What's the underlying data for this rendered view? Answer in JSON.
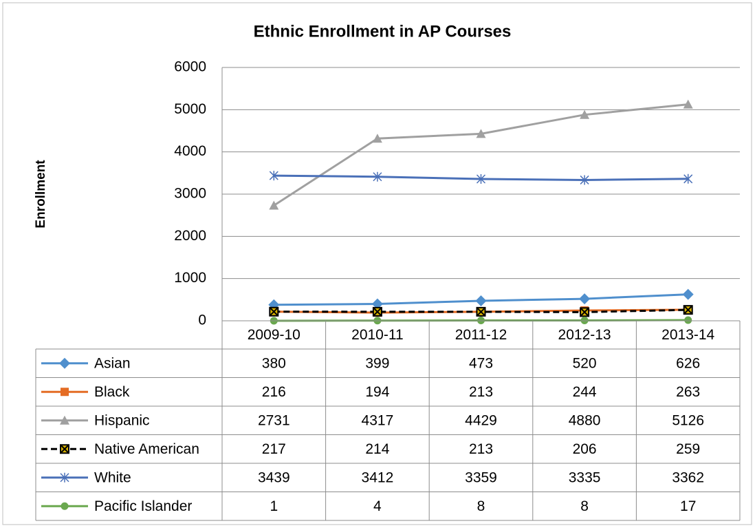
{
  "chart_data": {
    "type": "line",
    "title": "Ethnic Enrollment in AP Courses",
    "y_label": "Enrollment",
    "categories": [
      "2009-10",
      "2010-11",
      "2011-12",
      "2012-13",
      "2013-14"
    ],
    "series": [
      {
        "name": "Asian",
        "color": "#4f8fcd",
        "marker": "diamond",
        "values": [
          380,
          399,
          473,
          520,
          626
        ]
      },
      {
        "name": "Black",
        "color": "#e46c24",
        "marker": "square",
        "values": [
          216,
          194,
          213,
          244,
          263
        ]
      },
      {
        "name": "Hispanic",
        "color": "#a0a0a0",
        "marker": "triangle",
        "values": [
          2731,
          4317,
          4429,
          4880,
          5126
        ]
      },
      {
        "name": "Native American",
        "color": "#000000",
        "marker": "xsquare",
        "dashed": true,
        "values": [
          217,
          214,
          213,
          206,
          259
        ]
      },
      {
        "name": "White",
        "color": "#4a70b8",
        "marker": "star",
        "values": [
          3439,
          3412,
          3359,
          3335,
          3362
        ]
      },
      {
        "name": "Pacific Islander",
        "color": "#6aa84f",
        "marker": "circle",
        "values": [
          1,
          4,
          8,
          8,
          17
        ]
      }
    ],
    "ylim": [
      0,
      6000
    ],
    "yticks": [
      0,
      1000,
      2000,
      3000,
      4000,
      5000,
      6000
    ],
    "grid": true,
    "data_table": true
  }
}
